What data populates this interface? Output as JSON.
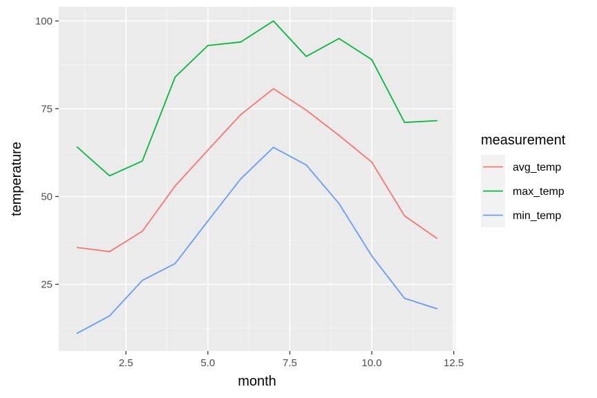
{
  "chart_data": {
    "type": "line",
    "xlabel": "month",
    "ylabel": "temperature",
    "x": [
      1,
      2,
      3,
      4,
      5,
      6,
      7,
      8,
      9,
      10,
      11,
      12
    ],
    "xlim": [
      0.45,
      12.55
    ],
    "ylim": [
      6,
      104
    ],
    "x_ticks": [
      2.5,
      5.0,
      7.5,
      10.0,
      12.5
    ],
    "x_tick_labels": [
      "2.5",
      "5.0",
      "7.5",
      "10.0",
      "12.5"
    ],
    "y_ticks": [
      25,
      50,
      75,
      100
    ],
    "y_tick_labels": [
      "25",
      "50",
      "75",
      "100"
    ],
    "grid": true,
    "legend": {
      "title": "measurement",
      "position": "right"
    },
    "series": [
      {
        "name": "avg_temp",
        "color": "#F8766D",
        "values": [
          35.5,
          34.3,
          40.1,
          53.0,
          63.2,
          73.3,
          80.7,
          74.6,
          67.4,
          59.8,
          44.5,
          38.0
        ]
      },
      {
        "name": "max_temp",
        "color": "#00BA38",
        "values": [
          64.2,
          55.9,
          60.1,
          84.0,
          93.0,
          94.0,
          100.0,
          89.9,
          95.0,
          89.0,
          71.1,
          71.6
        ]
      },
      {
        "name": "min_temp",
        "color": "#619CFF",
        "values": [
          11.0,
          16.0,
          26.1,
          30.9,
          43.0,
          55.0,
          64.0,
          59.0,
          48.0,
          33.1,
          21.0,
          18.0
        ]
      }
    ]
  },
  "style": {
    "panel_background": "#EBEBEB",
    "grid_major": "#FFFFFF",
    "grid_minor": "#F5F5F5",
    "legend_key_background": "#F2F2F2",
    "tick_label_color": "#4D4D4D",
    "tick_color": "#333333"
  }
}
